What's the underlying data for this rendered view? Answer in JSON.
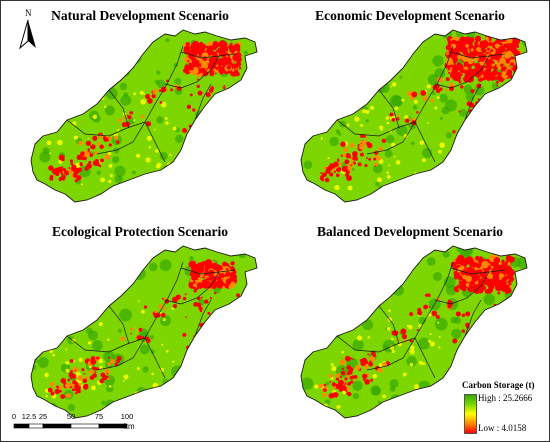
{
  "panels": [
    {
      "title": "Natural Development Scenario",
      "urban_extent": 1.0
    },
    {
      "title": "Economic Development Scenario",
      "urban_extent": 1.35
    },
    {
      "title": "Ecological Protection Scenario",
      "urban_extent": 0.8
    },
    {
      "title": "Balanced Development Scenario",
      "urban_extent": 1.1
    }
  ],
  "north_arrow": {
    "label": "N"
  },
  "scale_bar": {
    "ticks": [
      "0",
      "12.5",
      "25",
      "50",
      "75",
      "100"
    ],
    "unit": "km"
  },
  "legend": {
    "title": "Carbon Storage (t)",
    "high_label": "High : 25.2666",
    "low_label": "Low : 4.0158",
    "high_value": 25.2666,
    "low_value": 4.0158
  },
  "colors": {
    "high": "#38a800",
    "mid_high": "#7ed600",
    "mid": "#ffff00",
    "mid_low": "#ff8a00",
    "low": "#ff0000",
    "boundary": "#1a1a1a"
  }
}
